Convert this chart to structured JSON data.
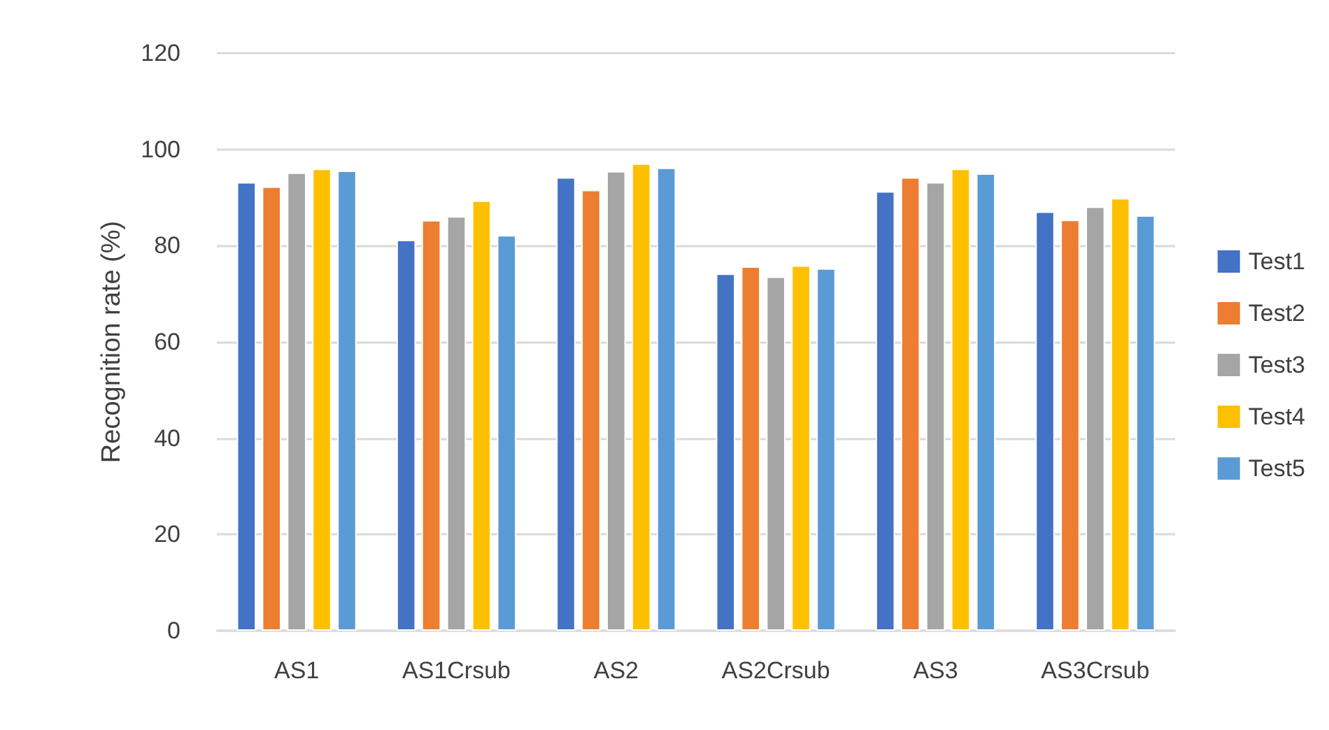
{
  "chart_data": {
    "type": "bar",
    "ylabel": "Recognition rate (%)",
    "categories": [
      "AS1",
      "AS1Crsub",
      "AS2",
      "AS2Crsub",
      "AS3",
      "AS3Crsub"
    ],
    "series": [
      {
        "name": "Test1",
        "color": "#4472c4",
        "values": [
          93.2,
          81.2,
          94.2,
          74.2,
          91.3,
          87.1
        ]
      },
      {
        "name": "Test2",
        "color": "#ed7d31",
        "values": [
          92.3,
          85.3,
          91.6,
          75.7,
          94.2,
          85.4
        ]
      },
      {
        "name": "Test3",
        "color": "#a5a5a5",
        "values": [
          95.2,
          86.1,
          95.5,
          73.6,
          93.2,
          88.1
        ]
      },
      {
        "name": "Test4",
        "color": "#ffc000",
        "values": [
          96.0,
          89.4,
          97.1,
          75.9,
          96.0,
          89.9
        ]
      },
      {
        "name": "Test5",
        "color": "#5b9bd5",
        "values": [
          95.6,
          82.2,
          96.2,
          75.3,
          95.0,
          86.3
        ]
      }
    ],
    "ylim": [
      0,
      120
    ],
    "yticks": [
      0,
      20,
      40,
      60,
      80,
      100,
      120
    ],
    "grid": "y",
    "legend": "right"
  }
}
